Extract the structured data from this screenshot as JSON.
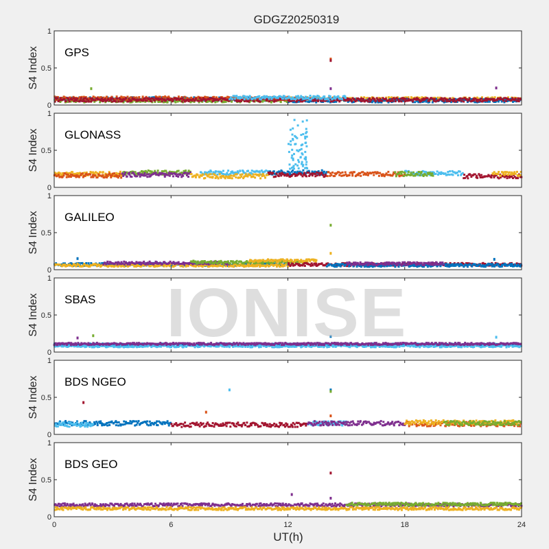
{
  "chart_data": {
    "type": "scatter",
    "title": "GDGZ20250319",
    "xlabel": "UT(h)",
    "ylabel": "S4 Index",
    "xlim": [
      0,
      24
    ],
    "xticks": [
      0,
      6,
      12,
      18,
      24
    ],
    "watermark": "IONISE",
    "grid": false,
    "legend": "none",
    "series_colors": [
      "#0072BD",
      "#D95319",
      "#EDB120",
      "#7E2F8E",
      "#77AC30",
      "#4DBEEE",
      "#A2142F"
    ],
    "panels": [
      {
        "name": "GPS",
        "ylim": [
          0,
          1
        ],
        "yticks": [
          "0",
          "0.5",
          "1"
        ],
        "baseline": 0.07,
        "spread": 0.025,
        "segments": [
          {
            "x0": 0.0,
            "x1": 12.0,
            "level": 0.08,
            "color": "#0072BD"
          },
          {
            "x0": 0.0,
            "x1": 12.0,
            "level": 0.06,
            "color": "#77AC30"
          },
          {
            "x0": 0.0,
            "x1": 12.0,
            "level": 0.09,
            "color": "#D95319"
          },
          {
            "x0": 0.0,
            "x1": 12.0,
            "level": 0.07,
            "color": "#A2142F"
          },
          {
            "x0": 12.0,
            "x1": 24.0,
            "level": 0.08,
            "color": "#EDB120"
          },
          {
            "x0": 12.0,
            "x1": 24.0,
            "level": 0.06,
            "color": "#0072BD"
          },
          {
            "x0": 12.0,
            "x1": 24.0,
            "level": 0.07,
            "color": "#A2142F"
          },
          {
            "x0": 9.0,
            "x1": 15.0,
            "level": 0.1,
            "color": "#4DBEEE"
          }
        ],
        "outliers": [
          {
            "x": 1.9,
            "y": 0.22,
            "color": "#77AC30"
          },
          {
            "x": 14.2,
            "y": 0.62,
            "color": "#D95319"
          },
          {
            "x": 14.2,
            "y": 0.6,
            "color": "#A2142F"
          },
          {
            "x": 14.2,
            "y": 0.22,
            "color": "#7E2F8E"
          },
          {
            "x": 22.7,
            "y": 0.23,
            "color": "#7E2F8E"
          }
        ]
      },
      {
        "name": "GLONASS",
        "ylim": [
          0,
          1
        ],
        "yticks": [
          "0",
          "0.5",
          "1"
        ],
        "baseline": 0.17,
        "spread": 0.03,
        "segments": [
          {
            "x0": 0.0,
            "x1": 3.5,
            "level": 0.18,
            "color": "#EDB120"
          },
          {
            "x0": 0.0,
            "x1": 3.5,
            "level": 0.16,
            "color": "#D95319"
          },
          {
            "x0": 3.5,
            "x1": 7.0,
            "level": 0.2,
            "color": "#77AC30"
          },
          {
            "x0": 3.5,
            "x1": 7.0,
            "level": 0.17,
            "color": "#7E2F8E"
          },
          {
            "x0": 7.5,
            "x1": 11.0,
            "level": 0.2,
            "color": "#4DBEEE"
          },
          {
            "x0": 7.0,
            "x1": 11.0,
            "level": 0.15,
            "color": "#EDB120"
          },
          {
            "x0": 11.0,
            "x1": 14.0,
            "level": 0.2,
            "color": "#0072BD"
          },
          {
            "x0": 11.0,
            "x1": 14.0,
            "level": 0.17,
            "color": "#A2142F"
          },
          {
            "x0": 14.0,
            "x1": 18.0,
            "level": 0.18,
            "color": "#D95319"
          },
          {
            "x0": 18.0,
            "x1": 21.0,
            "level": 0.19,
            "color": "#4DBEEE"
          },
          {
            "x0": 17.5,
            "x1": 19.5,
            "level": 0.18,
            "color": "#77AC30"
          },
          {
            "x0": 21.0,
            "x1": 24.0,
            "level": 0.15,
            "color": "#A2142F"
          },
          {
            "x0": 22.5,
            "x1": 24.0,
            "level": 0.18,
            "color": "#EDB120"
          }
        ],
        "scintillation": {
          "x0": 12.0,
          "x1": 13.0,
          "ymin": 0.25,
          "ymax": 0.92,
          "color": "#4DBEEE"
        }
      },
      {
        "name": "GALILEO",
        "ylim": [
          0,
          1
        ],
        "yticks": [
          "0",
          "0.5",
          "1"
        ],
        "baseline": 0.07,
        "spread": 0.02,
        "segments": [
          {
            "x0": 0.0,
            "x1": 12.0,
            "level": 0.07,
            "color": "#0072BD"
          },
          {
            "x0": 0.0,
            "x1": 12.0,
            "level": 0.06,
            "color": "#EDB120"
          },
          {
            "x0": 2.5,
            "x1": 9.0,
            "level": 0.09,
            "color": "#7E2F8E"
          },
          {
            "x0": 7.0,
            "x1": 13.0,
            "level": 0.1,
            "color": "#77AC30"
          },
          {
            "x0": 10.0,
            "x1": 13.5,
            "level": 0.12,
            "color": "#EDB120"
          },
          {
            "x0": 12.0,
            "x1": 24.0,
            "level": 0.07,
            "color": "#A2142F"
          },
          {
            "x0": 14.0,
            "x1": 24.0,
            "level": 0.06,
            "color": "#0072BD"
          },
          {
            "x0": 15.0,
            "x1": 20.0,
            "level": 0.08,
            "color": "#7E2F8E"
          }
        ],
        "outliers": [
          {
            "x": 14.2,
            "y": 0.6,
            "color": "#77AC30"
          },
          {
            "x": 14.2,
            "y": 0.22,
            "color": "#EDB120"
          },
          {
            "x": 1.2,
            "y": 0.15,
            "color": "#0072BD"
          },
          {
            "x": 22.6,
            "y": 0.14,
            "color": "#0072BD"
          }
        ]
      },
      {
        "name": "SBAS",
        "ylim": [
          0,
          1
        ],
        "yticks": [
          "0",
          "0.5",
          "1"
        ],
        "baseline": 0.1,
        "spread": 0.015,
        "segments": [
          {
            "x0": 0.0,
            "x1": 24.0,
            "level": 0.1,
            "color": "#0072BD"
          },
          {
            "x0": 0.0,
            "x1": 24.0,
            "level": 0.08,
            "color": "#4DBEEE"
          },
          {
            "x0": 0.0,
            "x1": 24.0,
            "level": 0.11,
            "color": "#7E2F8E"
          }
        ],
        "outliers": [
          {
            "x": 2.0,
            "y": 0.22,
            "color": "#77AC30"
          },
          {
            "x": 1.2,
            "y": 0.19,
            "color": "#7E2F8E"
          },
          {
            "x": 14.2,
            "y": 0.21,
            "color": "#0072BD"
          },
          {
            "x": 22.7,
            "y": 0.2,
            "color": "#4DBEEE"
          }
        ]
      },
      {
        "name": "BDS NGEO",
        "ylim": [
          0,
          1
        ],
        "yticks": [
          "0",
          "0.5",
          "1"
        ],
        "baseline": 0.14,
        "spread": 0.03,
        "segments": [
          {
            "x0": 0.0,
            "x1": 6.0,
            "level": 0.15,
            "color": "#0072BD"
          },
          {
            "x0": 0.0,
            "x1": 2.0,
            "level": 0.13,
            "color": "#4DBEEE"
          },
          {
            "x0": 6.0,
            "x1": 13.0,
            "level": 0.13,
            "color": "#A2142F"
          },
          {
            "x0": 13.0,
            "x1": 15.0,
            "level": 0.15,
            "color": "#4DBEEE"
          },
          {
            "x0": 13.0,
            "x1": 18.0,
            "level": 0.15,
            "color": "#7E2F8E"
          },
          {
            "x0": 18.0,
            "x1": 24.0,
            "level": 0.14,
            "color": "#D95319"
          },
          {
            "x0": 18.0,
            "x1": 24.0,
            "level": 0.16,
            "color": "#EDB120"
          },
          {
            "x0": 20.0,
            "x1": 24.0,
            "level": 0.15,
            "color": "#77AC30"
          }
        ],
        "outliers": [
          {
            "x": 1.5,
            "y": 0.43,
            "color": "#A2142F"
          },
          {
            "x": 7.8,
            "y": 0.3,
            "color": "#D95319"
          },
          {
            "x": 9.0,
            "y": 0.6,
            "color": "#4DBEEE"
          },
          {
            "x": 14.2,
            "y": 0.6,
            "color": "#0072BD"
          },
          {
            "x": 14.2,
            "y": 0.58,
            "color": "#77AC30"
          },
          {
            "x": 14.2,
            "y": 0.25,
            "color": "#D95319"
          }
        ]
      },
      {
        "name": "BDS GEO",
        "ylim": [
          0,
          1
        ],
        "yticks": [
          "0",
          "0.5",
          "1"
        ],
        "baseline": 0.13,
        "spread": 0.02,
        "segments": [
          {
            "x0": 0.0,
            "x1": 24.0,
            "level": 0.16,
            "color": "#7E2F8E"
          },
          {
            "x0": 0.0,
            "x1": 24.0,
            "level": 0.11,
            "color": "#EDB120"
          },
          {
            "x0": 15.0,
            "x1": 24.0,
            "level": 0.17,
            "color": "#77AC30"
          }
        ],
        "outliers": [
          {
            "x": 12.2,
            "y": 0.3,
            "color": "#7E2F8E"
          },
          {
            "x": 14.2,
            "y": 0.59,
            "color": "#A2142F"
          },
          {
            "x": 14.2,
            "y": 0.25,
            "color": "#7E2F8E"
          }
        ]
      }
    ]
  }
}
